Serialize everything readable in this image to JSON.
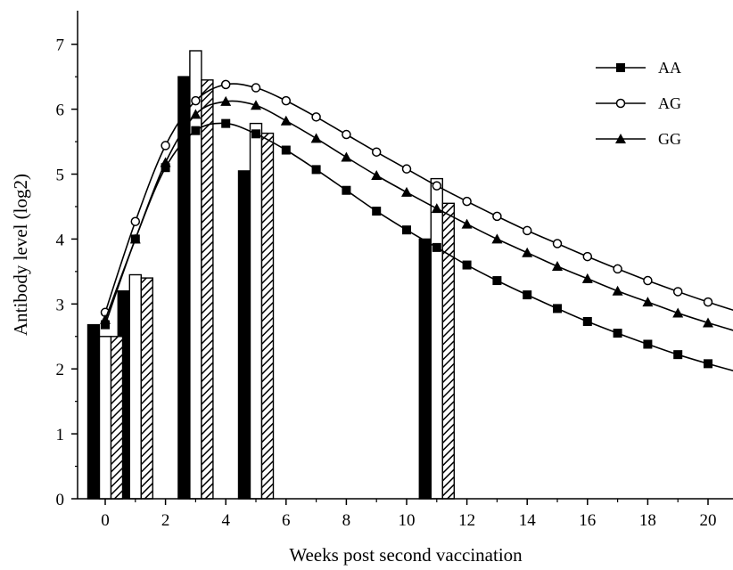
{
  "chart_data": {
    "type": "bar",
    "title": "",
    "xlabel": "Weeks post second vaccination",
    "ylabel": "Antibody level (log2)",
    "xlim": [
      -1,
      21
    ],
    "ylim": [
      0,
      7.5
    ],
    "x_ticks": [
      0,
      2,
      4,
      6,
      8,
      10,
      12,
      14,
      16,
      18,
      20
    ],
    "y_ticks": [
      0,
      1,
      2,
      3,
      4,
      5,
      6,
      7
    ],
    "grid": false,
    "legend_position": "top-right",
    "bar_groups": {
      "x": [
        0,
        1,
        3,
        5,
        11
      ],
      "series": [
        {
          "name": "AA",
          "fill": "solid",
          "values": [
            2.68,
            3.2,
            6.5,
            5.05,
            4.0
          ]
        },
        {
          "name": "AG",
          "fill": "open",
          "values": [
            2.5,
            3.45,
            6.9,
            5.78,
            4.93
          ]
        },
        {
          "name": "GG",
          "fill": "hatched",
          "values": [
            2.5,
            3.4,
            6.45,
            5.63,
            4.55
          ]
        }
      ]
    },
    "series": [
      {
        "name": "AA",
        "marker": "filled-square",
        "x": [
          0,
          1,
          2,
          3,
          4,
          5,
          6,
          7,
          8,
          9,
          10,
          11,
          12,
          13,
          14,
          15,
          16,
          17,
          18,
          19,
          20,
          21
        ],
        "values": [
          2.68,
          4.0,
          5.1,
          5.67,
          5.78,
          5.62,
          5.37,
          5.07,
          4.75,
          4.43,
          4.14,
          3.87,
          3.6,
          3.36,
          3.14,
          2.93,
          2.73,
          2.55,
          2.38,
          2.22,
          2.08,
          1.95
        ]
      },
      {
        "name": "AG",
        "marker": "open-circle",
        "x": [
          0,
          1,
          2,
          3,
          4,
          5,
          6,
          7,
          8,
          9,
          10,
          11,
          12,
          13,
          14,
          15,
          16,
          17,
          18,
          19,
          20,
          21
        ],
        "values": [
          2.87,
          4.27,
          5.44,
          6.13,
          6.38,
          6.33,
          6.13,
          5.88,
          5.61,
          5.34,
          5.08,
          4.82,
          4.58,
          4.35,
          4.13,
          3.93,
          3.73,
          3.54,
          3.36,
          3.19,
          3.03,
          2.88
        ]
      },
      {
        "name": "GG",
        "marker": "filled-triangle",
        "x": [
          0,
          1,
          2,
          3,
          4,
          5,
          6,
          7,
          8,
          9,
          10,
          11,
          12,
          13,
          14,
          15,
          16,
          17,
          18,
          19,
          20,
          21
        ],
        "values": [
          2.76,
          4.0,
          5.18,
          5.92,
          6.12,
          6.06,
          5.82,
          5.55,
          5.26,
          4.98,
          4.72,
          4.47,
          4.23,
          4.0,
          3.79,
          3.58,
          3.39,
          3.2,
          3.03,
          2.86,
          2.71,
          2.57
        ]
      }
    ],
    "legend": [
      {
        "label": "AA",
        "marker": "filled-square"
      },
      {
        "label": "AG",
        "marker": "open-circle"
      },
      {
        "label": "GG",
        "marker": "filled-triangle"
      }
    ]
  }
}
